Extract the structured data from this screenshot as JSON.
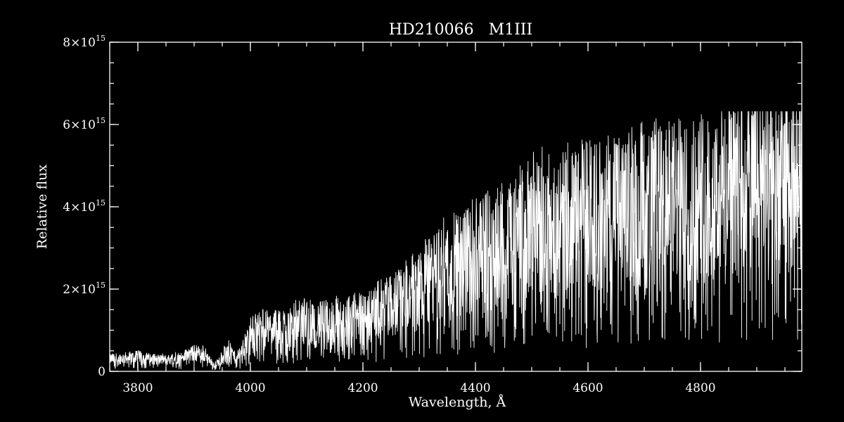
{
  "chart_data": {
    "type": "line",
    "title": "HD210066   M1III",
    "xlabel": "Wavelength, Å",
    "ylabel": "Relative flux",
    "xlim": [
      3750,
      4980
    ],
    "ylim": [
      0,
      8000000000000000.0
    ],
    "x_ticks": [
      {
        "value": 3800,
        "label": "3800"
      },
      {
        "value": 4000,
        "label": "4000"
      },
      {
        "value": 4200,
        "label": "4200"
      },
      {
        "value": 4400,
        "label": "4400"
      },
      {
        "value": 4600,
        "label": "4600"
      },
      {
        "value": 4800,
        "label": "4800"
      }
    ],
    "x_minor_step": 50,
    "y_ticks": [
      {
        "value": 0,
        "mantissa": "0",
        "base": "",
        "exponent": ""
      },
      {
        "value": 2000000000000000.0,
        "mantissa": "2",
        "base": "×10",
        "exponent": "15"
      },
      {
        "value": 4000000000000000.0,
        "mantissa": "4",
        "base": "×10",
        "exponent": "15"
      },
      {
        "value": 6000000000000000.0,
        "mantissa": "6",
        "base": "×10",
        "exponent": "15"
      },
      {
        "value": 8000000000000000.0,
        "mantissa": "8",
        "base": "×10",
        "exponent": "15"
      }
    ],
    "y_minor_step": 500000000000000.0,
    "grid": false,
    "colors": {
      "background": "#000000",
      "foreground": "#ffffff"
    },
    "series": [
      {
        "x": [
          3750,
          3775,
          3800,
          3825,
          3850,
          3875,
          3900,
          3920,
          3935,
          3945,
          3960,
          3975,
          3990,
          4000,
          4025,
          4050,
          4075,
          4100,
          4125,
          4150,
          4175,
          4200,
          4225,
          4250,
          4275,
          4300,
          4325,
          4350,
          4375,
          4400,
          4425,
          4450,
          4475,
          4500,
          4525,
          4550,
          4575,
          4600,
          4625,
          4650,
          4675,
          4700,
          4725,
          4750,
          4775,
          4800,
          4825,
          4850,
          4875,
          4900,
          4925,
          4950,
          4980
        ],
        "y": [
          300000000000000.0,
          320000000000000.0,
          350000000000000.0,
          300000000000000.0,
          280000000000000.0,
          320000000000000.0,
          450000000000000.0,
          400000000000000.0,
          150000000000000.0,
          250000000000000.0,
          550000000000000.0,
          300000000000000.0,
          600000000000000.0,
          900000000000000.0,
          1050000000000000.0,
          1000000000000000.0,
          1150000000000000.0,
          1200000000000000.0,
          1150000000000000.0,
          1200000000000000.0,
          1250000000000000.0,
          1300000000000000.0,
          1450000000000000.0,
          1600000000000000.0,
          1800000000000000.0,
          2000000000000000.0,
          2250000000000000.0,
          2500000000000000.0,
          2600000000000000.0,
          2800000000000000.0,
          2950000000000000.0,
          3100000000000000.0,
          3300000000000000.0,
          3450000000000000.0,
          3550000000000000.0,
          3600000000000000.0,
          3700000000000000.0,
          3800000000000000.0,
          3750000000000000.0,
          3850000000000000.0,
          3900000000000000.0,
          3950000000000000.0,
          4000000000000000.0,
          4100000000000000.0,
          4150000000000000.0,
          4250000000000000.0,
          4300000000000000.0,
          4400000000000000.0,
          4450000000000000.0,
          4500000000000000.0,
          4550000000000000.0,
          4600000000000000.0,
          4650000000000000.0
        ]
      }
    ]
  }
}
